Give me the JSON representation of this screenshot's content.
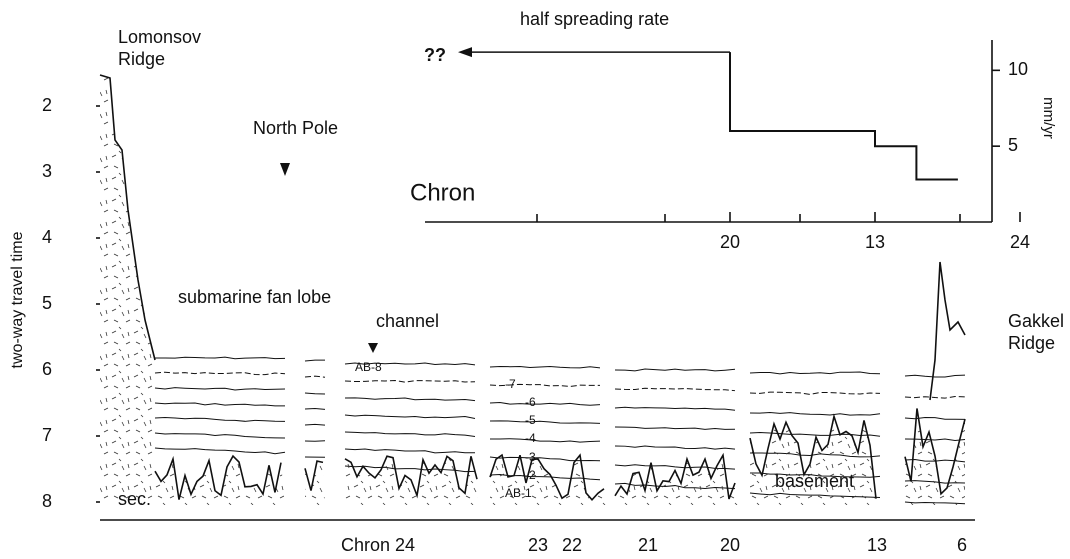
{
  "main": {
    "y_label": "two-way travel time",
    "y_unit": "sec.",
    "ylim": [
      8,
      1.5
    ],
    "yticks": [
      2,
      3,
      4,
      5,
      6,
      7,
      8
    ],
    "x_labels": [
      "Chron 24",
      "23",
      "22",
      "21",
      "20",
      "13",
      "6"
    ],
    "annotations": {
      "left_ridge": [
        "Lomonsov",
        "Ridge"
      ],
      "pole": "North Pole",
      "fan": "submarine fan lobe",
      "channel": "channel",
      "horizons": [
        "AB-8",
        "-7",
        "-6",
        "-5",
        "-4",
        "-3",
        "-2",
        "AB-1"
      ],
      "basement": "basement",
      "right_ridge": [
        "Gakkel",
        "Ridge"
      ]
    }
  },
  "chart_data": {
    "type": "line",
    "title": "half spreading rate",
    "x_label": "Chron",
    "y_label": "mm/yr",
    "unknown_label": "??",
    "x": [
      20,
      20,
      13,
      13,
      11,
      11,
      9
    ],
    "values": [
      11.2,
      6,
      6,
      5,
      5,
      2.8,
      2.8
    ],
    "color": "#111111",
    "xticks": [
      24,
      20,
      13
    ],
    "ylim": [
      0,
      12
    ],
    "yticks": [
      5,
      10
    ]
  }
}
